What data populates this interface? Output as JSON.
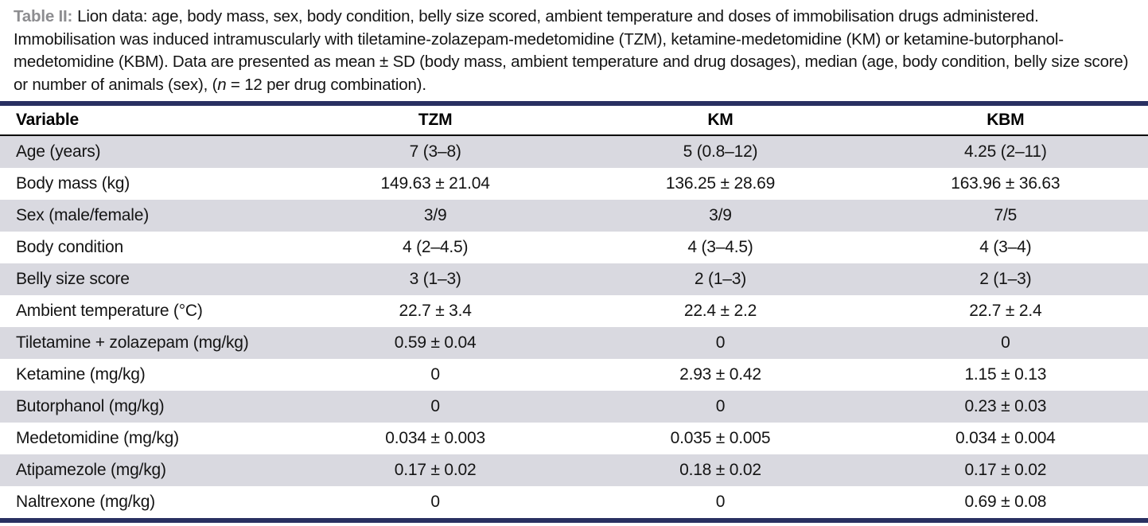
{
  "caption": {
    "label": "Table II:",
    "text_main": "Lion data: age, body mass, sex, body condition, belly size scored, ambient temperature and doses of immobilisation drugs administered. Immobilisation was induced intramuscularly with tiletamine-zolazepam-medetomidine (TZM), ketamine-medetomidine (KM) or ketamine-butorphanol-medetomidine (KBM). Data are presented as mean ± SD (body mass, ambient temperature and drug dosages), median (age, body condition, belly size score) or number of animals (sex), (",
    "n_italic": "n",
    "text_tail": " = 12 per drug combination)."
  },
  "table": {
    "headers": [
      "Variable",
      "TZM",
      "KM",
      "KBM"
    ],
    "rows": [
      {
        "variable": "Age (years)",
        "values": [
          "7 (3–8)",
          "5 (0.8–12)",
          "4.25 (2–11)"
        ]
      },
      {
        "variable": "Body mass (kg)",
        "values": [
          "149.63 ± 21.04",
          "136.25 ± 28.69",
          "163.96 ± 36.63"
        ]
      },
      {
        "variable": "Sex (male/female)",
        "values": [
          "3/9",
          "3/9",
          "7/5"
        ]
      },
      {
        "variable": "Body condition",
        "values": [
          "4 (2–4.5)",
          "4 (3–4.5)",
          "4 (3–4)"
        ]
      },
      {
        "variable": "Belly size score",
        "values": [
          "3 (1–3)",
          "2 (1–3)",
          "2 (1–3)"
        ]
      },
      {
        "variable": "Ambient temperature (°C)",
        "values": [
          "22.7 ± 3.4",
          "22.4 ± 2.2",
          "22.7 ± 2.4"
        ]
      },
      {
        "variable": "Tiletamine + zolazepam (mg/kg)",
        "values": [
          "0.59 ± 0.04",
          "0",
          "0"
        ]
      },
      {
        "variable": "Ketamine (mg/kg)",
        "values": [
          "0",
          "2.93 ± 0.42",
          "1.15 ± 0.13"
        ]
      },
      {
        "variable": "Butorphanol (mg/kg)",
        "values": [
          "0",
          "0",
          "0.23 ± 0.03"
        ]
      },
      {
        "variable": "Medetomidine (mg/kg)",
        "values": [
          "0.034 ± 0.003",
          "0.035 ± 0.005",
          "0.034 ± 0.004"
        ]
      },
      {
        "variable": "Atipamezole (mg/kg)",
        "values": [
          "0.17 ± 0.02",
          "0.18 ± 0.02",
          "0.17 ± 0.02"
        ]
      },
      {
        "variable": "Naltrexone (mg/kg)",
        "values": [
          "0",
          "0",
          "0.69 ± 0.08"
        ]
      }
    ]
  },
  "colors": {
    "border_navy": "#293061",
    "row_stripe": "#d9d9e0",
    "caption_label_gray": "#8d8d90",
    "header_rule_black": "#000000"
  }
}
